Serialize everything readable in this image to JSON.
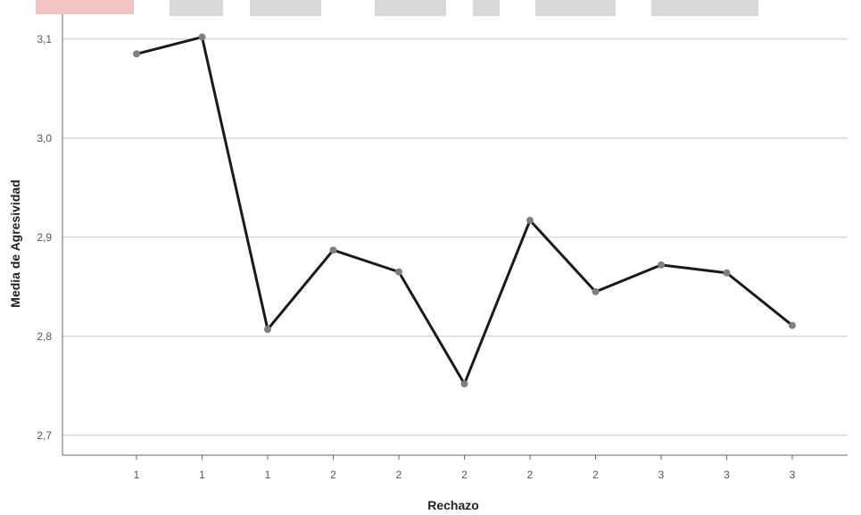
{
  "chart_data": {
    "type": "line",
    "title": "",
    "xlabel": "Rechazo",
    "ylabel": "Media de Agresividad",
    "categories": [
      "1",
      "1",
      "1",
      "2",
      "2",
      "2",
      "2",
      "2",
      "3",
      "3",
      "3"
    ],
    "series": [
      {
        "values": [
          3.085,
          3.102,
          2.807,
          2.887,
          2.865,
          2.752,
          2.917,
          2.845,
          2.872,
          2.864,
          2.811
        ]
      }
    ],
    "ylim": [
      2.68,
      3.125
    ],
    "yticks": [
      2.7,
      2.8,
      2.9,
      3.0,
      3.1
    ],
    "ytick_labels": [
      "2,7",
      "2,8",
      "2,9",
      "3,0",
      "3,1"
    ],
    "grid": true,
    "colors": {
      "line": "#1a1a1a",
      "marker": "#7f7f7f",
      "grid": "#c8c8c8",
      "axis": "#666666"
    }
  }
}
